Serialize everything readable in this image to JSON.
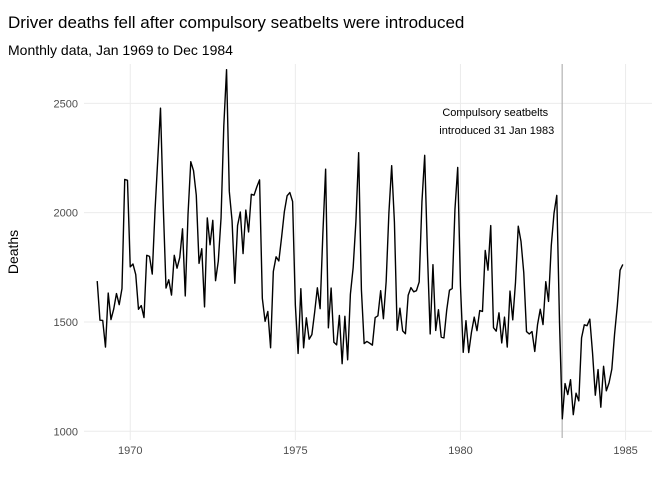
{
  "chart_data": {
    "type": "line",
    "title": "Driver deaths fell after compulsory seatbelts were introduced",
    "subtitle": "Monthly data, Jan 1969 to Dec 1984",
    "xlabel": "",
    "ylabel": "Deaths",
    "xlim": [
      1968.6,
      1985.8
    ],
    "ylim": [
      960,
      2680
    ],
    "x_ticks": [
      1970,
      1975,
      1980,
      1985
    ],
    "y_ticks": [
      1000,
      1500,
      2000,
      2500
    ],
    "grid": true,
    "legend": "none",
    "x_start": 1969,
    "months_per_unit": 12,
    "series": [
      {
        "values": [
          1687,
          1508,
          1507,
          1385,
          1632,
          1511,
          1559,
          1630,
          1579,
          1653,
          2152,
          2148,
          1752,
          1765,
          1717,
          1558,
          1575,
          1520,
          1805,
          1800,
          1719,
          2008,
          2242,
          2478,
          2030,
          1655,
          1693,
          1623,
          1805,
          1746,
          1795,
          1926,
          1619,
          1992,
          2233,
          2192,
          2080,
          1768,
          1835,
          1569,
          1976,
          1853,
          1965,
          1689,
          1778,
          1976,
          2397,
          2654,
          2097,
          1963,
          1677,
          1941,
          2003,
          1813,
          2012,
          1912,
          2084,
          2080,
          2118,
          2150,
          1608,
          1503,
          1548,
          1382,
          1731,
          1798,
          1779,
          1887,
          2004,
          2077,
          2092,
          2051,
          1577,
          1356,
          1652,
          1382,
          1519,
          1421,
          1442,
          1543,
          1656,
          1561,
          1905,
          2199,
          1473,
          1655,
          1407,
          1395,
          1530,
          1309,
          1526,
          1327,
          1627,
          1748,
          1958,
          2274,
          1648,
          1401,
          1411,
          1403,
          1394,
          1520,
          1528,
          1643,
          1515,
          1685,
          2000,
          2215,
          1956,
          1462,
          1563,
          1459,
          1446,
          1622,
          1657,
          1638,
          1643,
          1683,
          2050,
          2262,
          1813,
          1445,
          1762,
          1461,
          1556,
          1431,
          1427,
          1554,
          1645,
          1653,
          2016,
          2207,
          1665,
          1361,
          1506,
          1360,
          1453,
          1522,
          1460,
          1552,
          1548,
          1827,
          1737,
          1941,
          1474,
          1458,
          1542,
          1404,
          1522,
          1385,
          1641,
          1510,
          1681,
          1938,
          1868,
          1726,
          1456,
          1445,
          1456,
          1365,
          1487,
          1558,
          1488,
          1684,
          1594,
          1850,
          1998,
          2079,
          1494,
          1057,
          1218,
          1168,
          1236,
          1076,
          1174,
          1139,
          1427,
          1487,
          1483,
          1513,
          1357,
          1165,
          1282,
          1110,
          1297,
          1185,
          1222,
          1284,
          1444,
          1575,
          1737,
          1763
        ]
      }
    ],
    "vline_x": 1983.08,
    "annotation": {
      "lines": [
        "Compulsory seatbelts",
        "introduced 31 Jan 1983"
      ],
      "x": 1981.1,
      "y": 2400
    },
    "line_color": "#000000",
    "vline_color": "#b3b3b3",
    "grid_color": "#ebebeb"
  }
}
